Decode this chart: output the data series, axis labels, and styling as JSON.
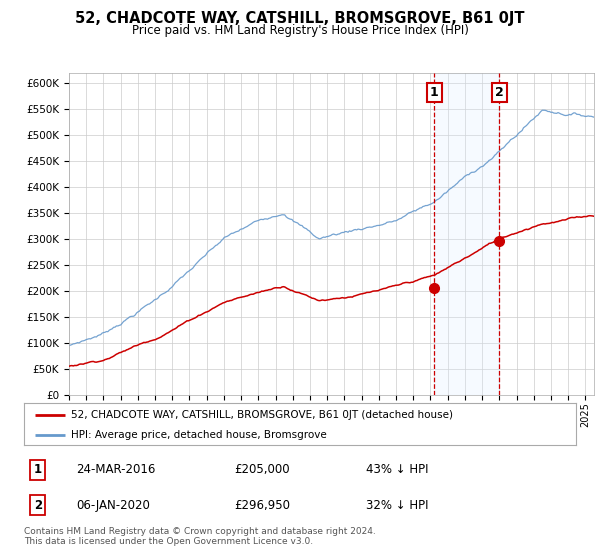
{
  "title": "52, CHADCOTE WAY, CATSHILL, BROMSGROVE, B61 0JT",
  "subtitle": "Price paid vs. HM Land Registry's House Price Index (HPI)",
  "legend_line1": "52, CHADCOTE WAY, CATSHILL, BROMSGROVE, B61 0JT (detached house)",
  "legend_line2": "HPI: Average price, detached house, Bromsgrove",
  "annotation1_label": "1",
  "annotation1_date": "24-MAR-2016",
  "annotation1_price": "£205,000",
  "annotation1_pct": "43% ↓ HPI",
  "annotation2_label": "2",
  "annotation2_date": "06-JAN-2020",
  "annotation2_price": "£296,950",
  "annotation2_pct": "32% ↓ HPI",
  "footnote": "Contains HM Land Registry data © Crown copyright and database right 2024.\nThis data is licensed under the Open Government Licence v3.0.",
  "price_color": "#cc0000",
  "hpi_color": "#6699cc",
  "vline_color": "#cc0000",
  "marker_color": "#cc0000",
  "shade_color": "#ddeeff",
  "bg_color": "#ffffff",
  "grid_color": "#cccccc",
  "annotation_box_color": "#cc0000",
  "sale1_x": 2016.208,
  "sale1_y": 205000,
  "sale2_x": 2020.0,
  "sale2_y": 296950,
  "ylim": [
    0,
    620000
  ],
  "xlim_start": 1995.0,
  "xlim_end": 2025.5
}
